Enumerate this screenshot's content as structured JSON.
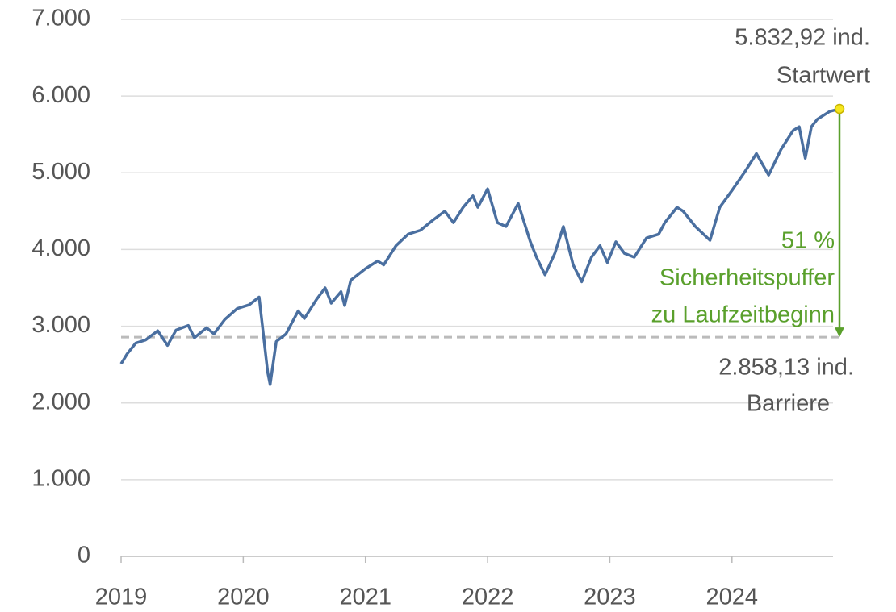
{
  "chart_data": {
    "type": "line",
    "x": [
      2019.0,
      2019.05,
      2019.12,
      2019.2,
      2019.3,
      2019.38,
      2019.45,
      2019.55,
      2019.6,
      2019.7,
      2019.76,
      2019.85,
      2019.95,
      2020.05,
      2020.13,
      2020.2,
      2020.22,
      2020.27,
      2020.35,
      2020.45,
      2020.5,
      2020.6,
      2020.67,
      2020.72,
      2020.8,
      2020.83,
      2020.88,
      2021.0,
      2021.1,
      2021.15,
      2021.25,
      2021.35,
      2021.45,
      2021.55,
      2021.65,
      2021.72,
      2021.8,
      2021.88,
      2021.92,
      2022.0,
      2022.08,
      2022.15,
      2022.25,
      2022.35,
      2022.4,
      2022.47,
      2022.55,
      2022.62,
      2022.7,
      2022.77,
      2022.85,
      2022.92,
      2022.98,
      2023.05,
      2023.12,
      2023.2,
      2023.3,
      2023.4,
      2023.45,
      2023.55,
      2023.6,
      2023.7,
      2023.82,
      2023.9,
      2024.0,
      2024.1,
      2024.2,
      2024.3,
      2024.4,
      2024.5,
      2024.55,
      2024.6,
      2024.65,
      2024.7,
      2024.8,
      2024.88
    ],
    "series": [
      {
        "color": "#4a6fa0",
        "values": [
          2510,
          2640,
          2780,
          2820,
          2940,
          2750,
          2950,
          3010,
          2850,
          2980,
          2900,
          3090,
          3230,
          3280,
          3380,
          2400,
          2240,
          2800,
          2900,
          3200,
          3100,
          3350,
          3500,
          3300,
          3450,
          3270,
          3600,
          3750,
          3850,
          3800,
          4050,
          4200,
          4250,
          4380,
          4500,
          4350,
          4550,
          4700,
          4550,
          4790,
          4350,
          4300,
          4600,
          4100,
          3900,
          3670,
          3950,
          4300,
          3800,
          3580,
          3900,
          4050,
          3830,
          4100,
          3950,
          3900,
          4150,
          4200,
          4350,
          4550,
          4500,
          4300,
          4120,
          4550,
          4770,
          5000,
          5250,
          4970,
          5300,
          5550,
          5600,
          5190,
          5600,
          5700,
          5800,
          5833
        ]
      }
    ],
    "xlim": [
      2019,
      2024.88
    ],
    "xticks": [
      2019,
      2020,
      2021,
      2022,
      2023,
      2024
    ],
    "ylim": [
      0,
      7000
    ],
    "yticks": [
      0,
      {
        "value": 1000,
        "label": "1.000"
      },
      {
        "value": 2000,
        "label": "2.000"
      },
      {
        "value": 3000,
        "label": "3.000"
      },
      {
        "value": 4000,
        "label": "4.000"
      },
      {
        "value": 5000,
        "label": "5.000"
      },
      {
        "value": 6000,
        "label": "6.000"
      },
      {
        "value": 7000,
        "label": "7.000"
      }
    ],
    "grid": true,
    "start_value": 5832.92,
    "barrier": 2858.13,
    "start_labels": [
      "5.832,92 ind.",
      "Startwert"
    ],
    "buffer_labels": [
      "51 %",
      "Sicherheitspuffer",
      "zu Laufzeitbeginn"
    ],
    "barrier_labels": [
      "2.858,13 ind.",
      "Barriere"
    ],
    "barrier_color": "#bbbbbb",
    "buffer_color": "#5aa02c",
    "marker_color": "#f5e61e"
  }
}
